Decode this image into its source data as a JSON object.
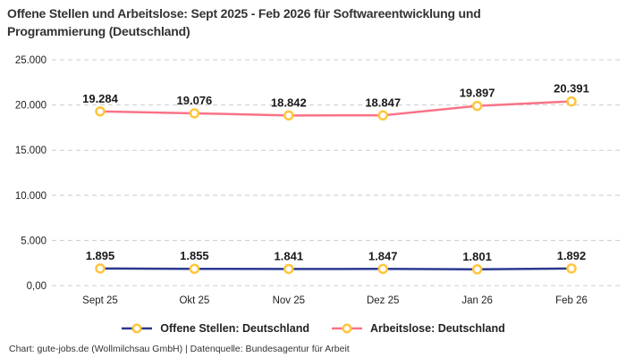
{
  "title": {
    "line1": "Offene Stellen und Arbeitslose: Sept 2025 - Feb 2026 für Softwareentwicklung und",
    "line2": "Programmierung (Deutschland)"
  },
  "footer": "Chart: gute-jobs.de (Wollmilchsau GmbH) | Datenquelle: Bundesagentur für Arbeit",
  "colors": {
    "offene_stellen_line": "#2B3990",
    "arbeitslose_line": "#F97387",
    "marker_ring": "#FFC53D",
    "marker_fill": "#FFFFFF",
    "grid": "#CCCCCC",
    "title_text": "#333333",
    "label_text": "#1A1A1A"
  },
  "chart_data": {
    "type": "line",
    "title": "Offene Stellen und Arbeitslose: Sept 2025 - Feb 2026 für Softwareentwicklung und Programmierung (Deutschland)",
    "categories": [
      "Sept 25",
      "Okt 25",
      "Nov 25",
      "Dez 25",
      "Jan 26",
      "Feb 26"
    ],
    "series": [
      {
        "id": "offene-stellen",
        "name": "Offene Stellen: Deutschland",
        "color": "#2B3990",
        "values": [
          1895,
          1855,
          1841,
          1847,
          1801,
          1892
        ],
        "labels": [
          "1.895",
          "1.855",
          "1.841",
          "1.847",
          "1.801",
          "1.892"
        ]
      },
      {
        "id": "arbeitslose",
        "name": "Arbeitslose: Deutschland",
        "color": "#F97387",
        "values": [
          19284,
          19076,
          18842,
          18847,
          19897,
          20391
        ],
        "labels": [
          "19.284",
          "19.076",
          "18.842",
          "18.847",
          "19.897",
          "20.391"
        ]
      }
    ],
    "y_ticks": [
      {
        "value": 0,
        "label": "0,00"
      },
      {
        "value": 5000,
        "label": "5.000"
      },
      {
        "value": 10000,
        "label": "10.000"
      },
      {
        "value": 15000,
        "label": "15.000"
      },
      {
        "value": 20000,
        "label": "20.000"
      },
      {
        "value": 25000,
        "label": "25.000"
      }
    ],
    "ylim": [
      0,
      25000
    ],
    "grid": "horizontal-dashed",
    "legend_position": "bottom",
    "marker": {
      "shape": "circle-ring",
      "ring_color": "#FFC53D",
      "fill": "#FFFFFF"
    }
  }
}
